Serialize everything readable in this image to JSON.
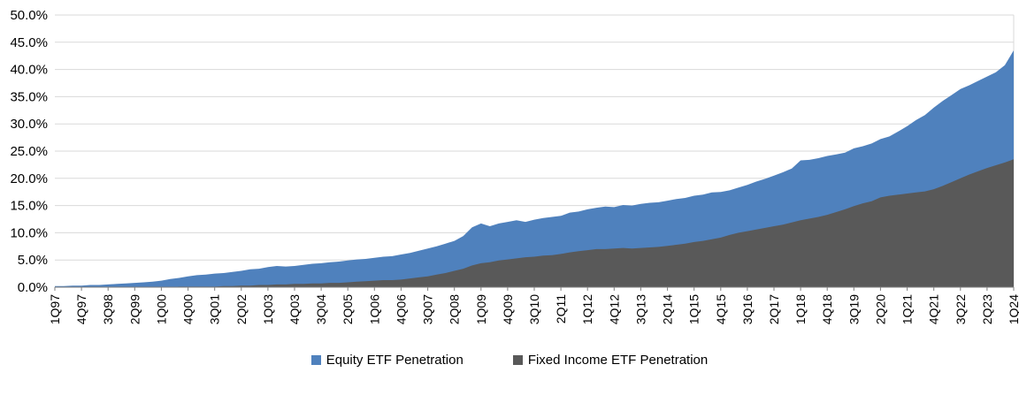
{
  "chart_data": {
    "type": "area",
    "x_start": "1Q97",
    "x_end": "1Q24",
    "x_tick_every": 3,
    "x_tick_labels": [
      "1Q97",
      "4Q97",
      "3Q98",
      "2Q99",
      "1Q00",
      "4Q00",
      "3Q01",
      "2Q02",
      "1Q03",
      "4Q03",
      "3Q04",
      "2Q05",
      "1Q06",
      "4Q06",
      "3Q07",
      "2Q08",
      "1Q09",
      "4Q09",
      "3Q10",
      "2Q11",
      "1Q12",
      "4Q12",
      "3Q13",
      "2Q14",
      "1Q15",
      "4Q15",
      "3Q16",
      "2Q17",
      "1Q18",
      "4Q18",
      "3Q19",
      "2Q20",
      "1Q21",
      "4Q21",
      "3Q22",
      "2Q23",
      "1Q24"
    ],
    "ylim": [
      0,
      50
    ],
    "y_tick_step": 5,
    "y_tick_labels": [
      "0.0%",
      "5.0%",
      "10.0%",
      "15.0%",
      "20.0%",
      "25.0%",
      "30.0%",
      "35.0%",
      "40.0%",
      "45.0%",
      "50.0%"
    ],
    "grid": true,
    "legend_position": "bottom",
    "gridline_color": "#D9D9D9",
    "axis_color": "#7F7F7F",
    "series": [
      {
        "name": "Equity ETF Penetration",
        "color": "#4F81BD",
        "values": [
          0.2,
          0.2,
          0.3,
          0.3,
          0.4,
          0.4,
          0.5,
          0.6,
          0.7,
          0.8,
          0.9,
          1.0,
          1.2,
          1.5,
          1.7,
          2.0,
          2.2,
          2.3,
          2.5,
          2.6,
          2.8,
          3.0,
          3.3,
          3.4,
          3.7,
          3.9,
          3.8,
          3.9,
          4.1,
          4.3,
          4.4,
          4.6,
          4.7,
          4.9,
          5.1,
          5.2,
          5.4,
          5.6,
          5.7,
          6.0,
          6.3,
          6.7,
          7.1,
          7.5,
          8.0,
          8.5,
          9.4,
          11.0,
          11.7,
          11.2,
          11.7,
          12.0,
          12.3,
          12.0,
          12.4,
          12.7,
          12.9,
          13.1,
          13.7,
          13.9,
          14.3,
          14.6,
          14.8,
          14.7,
          15.1,
          15.0,
          15.3,
          15.5,
          15.6,
          15.9,
          16.2,
          16.4,
          16.8,
          17.0,
          17.4,
          17.5,
          17.8,
          18.3,
          18.8,
          19.4,
          19.9,
          20.5,
          21.1,
          21.8,
          23.3,
          23.4,
          23.7,
          24.1,
          24.4,
          24.7,
          25.5,
          25.9,
          26.4,
          27.2,
          27.7,
          28.6,
          29.6,
          30.7,
          31.6,
          33.0,
          34.2,
          35.3,
          36.4,
          37.1,
          37.9,
          38.7,
          39.5,
          40.8,
          43.5
        ]
      },
      {
        "name": "Fixed Income ETF Penetration",
        "color": "#595959",
        "values": [
          0.0,
          0.0,
          0.0,
          0.0,
          0.0,
          0.0,
          0.0,
          0.0,
          0.0,
          0.0,
          0.0,
          0.0,
          0.0,
          0.0,
          0.1,
          0.1,
          0.1,
          0.1,
          0.1,
          0.2,
          0.2,
          0.3,
          0.3,
          0.4,
          0.4,
          0.5,
          0.5,
          0.6,
          0.6,
          0.7,
          0.7,
          0.8,
          0.8,
          0.9,
          1.0,
          1.1,
          1.2,
          1.3,
          1.3,
          1.4,
          1.6,
          1.8,
          2.0,
          2.3,
          2.6,
          3.0,
          3.4,
          4.0,
          4.4,
          4.6,
          4.9,
          5.1,
          5.3,
          5.5,
          5.6,
          5.8,
          5.9,
          6.1,
          6.4,
          6.6,
          6.8,
          7.0,
          7.0,
          7.1,
          7.2,
          7.1,
          7.2,
          7.3,
          7.4,
          7.6,
          7.8,
          8.0,
          8.3,
          8.5,
          8.8,
          9.1,
          9.6,
          10.0,
          10.3,
          10.6,
          10.9,
          11.2,
          11.5,
          11.9,
          12.3,
          12.6,
          12.9,
          13.3,
          13.8,
          14.3,
          14.9,
          15.4,
          15.8,
          16.5,
          16.8,
          17.0,
          17.2,
          17.4,
          17.6,
          18.0,
          18.6,
          19.3,
          20.0,
          20.7,
          21.3,
          21.9,
          22.4,
          22.9,
          23.5
        ]
      }
    ]
  }
}
